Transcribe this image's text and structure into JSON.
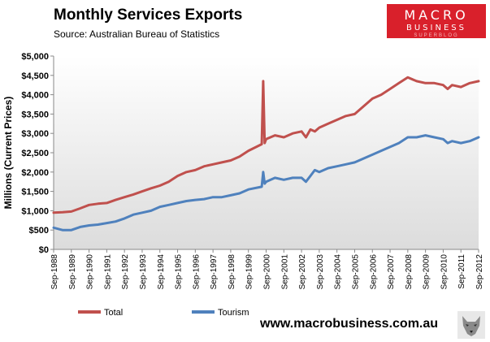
{
  "header": {
    "title": "Monthly Services Exports",
    "subtitle": "Source: Australian Bureau of Statistics"
  },
  "logo": {
    "main": "MACRO",
    "sub": "BUSINESS",
    "tag": "SUPERBLOG"
  },
  "footer": {
    "website": "www.macrobusiness.com.au"
  },
  "colors": {
    "total": "#c0504d",
    "tourism": "#4f81bd",
    "logo": "#d9202b"
  },
  "chart_data": {
    "type": "line",
    "title": "Monthly Services Exports",
    "ylabel": "Millions (Current Prices)",
    "xlabel": "",
    "ylim": [
      0,
      5000
    ],
    "y_ticks": [
      "$0",
      "$500",
      "$1,000",
      "$1,500",
      "$2,000",
      "$2,500",
      "$3,000",
      "$3,500",
      "$4,000",
      "$4,500",
      "$5,000"
    ],
    "x_ticks": [
      "Sep-1988",
      "Sep-1989",
      "Sep-1990",
      "Sep-1991",
      "Sep-1992",
      "Sep-1993",
      "Sep-1994",
      "Sep-1995",
      "Sep-1996",
      "Sep-1997",
      "Sep-1998",
      "Sep-1999",
      "Sep-2000",
      "Sep-2001",
      "Sep-2002",
      "Sep-2003",
      "Sep-2004",
      "Sep-2005",
      "Sep-2006",
      "Sep-2007",
      "Sep-2008",
      "Sep-2009",
      "Sep-2010",
      "Sep-2011",
      "Sep-2012"
    ],
    "legend_position": "bottom-left",
    "grid": false,
    "series": [
      {
        "name": "Total",
        "x": [
          "Sep-1988",
          "Mar-1989",
          "Sep-1989",
          "Mar-1990",
          "Sep-1990",
          "Mar-1991",
          "Sep-1991",
          "Mar-1992",
          "Sep-1992",
          "Mar-1993",
          "Sep-1993",
          "Mar-1994",
          "Sep-1994",
          "Mar-1995",
          "Sep-1995",
          "Mar-1996",
          "Sep-1996",
          "Mar-1997",
          "Sep-1997",
          "Mar-1998",
          "Sep-1998",
          "Mar-1999",
          "Sep-1999",
          "Jun-2000",
          "Jul-2000",
          "Aug-2000",
          "Sep-2000",
          "Mar-2001",
          "Sep-2001",
          "Mar-2002",
          "Sep-2002",
          "Dec-2002",
          "Mar-2003",
          "Jun-2003",
          "Sep-2003",
          "Mar-2004",
          "Sep-2004",
          "Mar-2005",
          "Sep-2005",
          "Mar-2006",
          "Sep-2006",
          "Mar-2007",
          "Sep-2007",
          "Mar-2008",
          "Sep-2008",
          "Mar-2009",
          "Sep-2009",
          "Mar-2010",
          "Sep-2010",
          "Dec-2010",
          "Mar-2011",
          "Sep-2011",
          "Mar-2012",
          "Sep-2012"
        ],
        "values": [
          950,
          960,
          980,
          1060,
          1150,
          1180,
          1200,
          1280,
          1350,
          1420,
          1500,
          1580,
          1650,
          1750,
          1900,
          2000,
          2050,
          2150,
          2200,
          2250,
          2300,
          2400,
          2550,
          2720,
          4350,
          2750,
          2850,
          2950,
          2900,
          3000,
          3050,
          2900,
          3100,
          3050,
          3150,
          3250,
          3350,
          3450,
          3500,
          3700,
          3900,
          4000,
          4150,
          4300,
          4450,
          4350,
          4300,
          4300,
          4250,
          4150,
          4250,
          4200,
          4300,
          4350
        ]
      },
      {
        "name": "Tourism",
        "x": [
          "Sep-1988",
          "Mar-1989",
          "Sep-1989",
          "Mar-1990",
          "Sep-1990",
          "Mar-1991",
          "Sep-1991",
          "Mar-1992",
          "Sep-1992",
          "Mar-1993",
          "Sep-1993",
          "Mar-1994",
          "Sep-1994",
          "Mar-1995",
          "Sep-1995",
          "Mar-1996",
          "Sep-1996",
          "Mar-1997",
          "Sep-1997",
          "Mar-1998",
          "Sep-1998",
          "Mar-1999",
          "Sep-1999",
          "Jun-2000",
          "Jul-2000",
          "Aug-2000",
          "Sep-2000",
          "Mar-2001",
          "Sep-2001",
          "Mar-2002",
          "Sep-2002",
          "Dec-2002",
          "Mar-2003",
          "Jun-2003",
          "Sep-2003",
          "Mar-2004",
          "Sep-2004",
          "Mar-2005",
          "Sep-2005",
          "Mar-2006",
          "Sep-2006",
          "Mar-2007",
          "Sep-2007",
          "Mar-2008",
          "Sep-2008",
          "Mar-2009",
          "Sep-2009",
          "Mar-2010",
          "Sep-2010",
          "Dec-2010",
          "Mar-2011",
          "Sep-2011",
          "Mar-2012",
          "Sep-2012"
        ],
        "values": [
          560,
          500,
          500,
          580,
          620,
          640,
          680,
          720,
          800,
          900,
          950,
          1000,
          1100,
          1150,
          1200,
          1250,
          1280,
          1300,
          1350,
          1350,
          1400,
          1450,
          1550,
          1620,
          2000,
          1700,
          1750,
          1850,
          1800,
          1850,
          1850,
          1750,
          1900,
          2050,
          2000,
          2100,
          2150,
          2200,
          2250,
          2350,
          2450,
          2550,
          2650,
          2750,
          2900,
          2900,
          2950,
          2900,
          2850,
          2750,
          2800,
          2750,
          2800,
          2900
        ]
      }
    ]
  }
}
